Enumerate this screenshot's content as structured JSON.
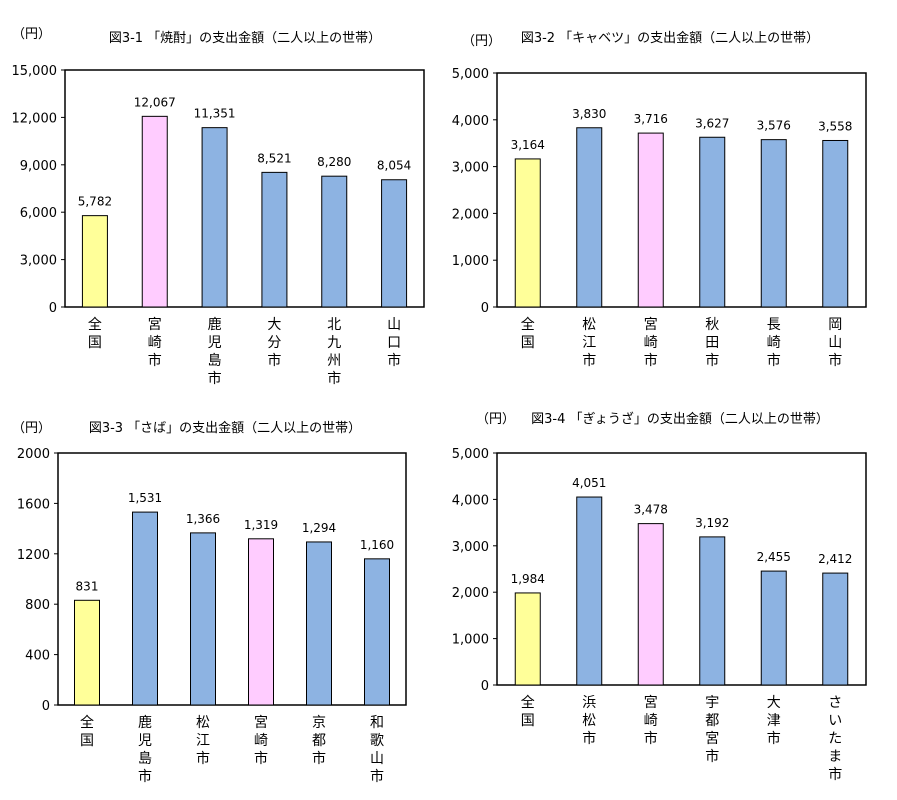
{
  "colors": {
    "national": "#FFFF99",
    "miyazaki": "#FFCCFF",
    "other": "#8DB3E2"
  },
  "chart_data": [
    {
      "type": "bar",
      "title": "図3-1 「焼酎」の支出金額（二人以上の世帯）",
      "ylabel": "（円）",
      "ylim": [
        0,
        15000
      ],
      "yticks": [
        "0",
        "3,000",
        "6,000",
        "9,000",
        "12,000",
        "15,000"
      ],
      "ytick_values": [
        0,
        3000,
        6000,
        9000,
        12000,
        15000
      ],
      "categories": [
        "全国",
        "宮崎市",
        "鹿児島市",
        "大分市",
        "北九州市",
        "山口市"
      ],
      "values": [
        5782,
        12067,
        11351,
        8521,
        8280,
        8054
      ],
      "value_labels": [
        "5,782",
        "12,067",
        "11,351",
        "8,521",
        "8,280",
        "8,054"
      ],
      "bar_colors": [
        "national",
        "miyazaki",
        "other",
        "other",
        "other",
        "other"
      ],
      "grid": false
    },
    {
      "type": "bar",
      "title": "図3-2 「キャベツ」の支出金額（二人以上の世帯）",
      "ylabel": "（円）",
      "ylim": [
        0,
        5000
      ],
      "yticks": [
        "0",
        "1,000",
        "2,000",
        "3,000",
        "4,000",
        "5,000"
      ],
      "ytick_values": [
        0,
        1000,
        2000,
        3000,
        4000,
        5000
      ],
      "categories": [
        "全国",
        "松江市",
        "宮崎市",
        "秋田市",
        "長崎市",
        "岡山市"
      ],
      "values": [
        3164,
        3830,
        3716,
        3627,
        3576,
        3558
      ],
      "value_labels": [
        "3,164",
        "3,830",
        "3,716",
        "3,627",
        "3,576",
        "3,558"
      ],
      "bar_colors": [
        "national",
        "other",
        "miyazaki",
        "other",
        "other",
        "other"
      ],
      "grid": false
    },
    {
      "type": "bar",
      "title": "図3-3 「さば」の支出金額（二人以上の世帯）",
      "ylabel": "（円）",
      "ylim": [
        0,
        2000
      ],
      "yticks": [
        "0",
        "400",
        "800",
        "1200",
        "1600",
        "2000"
      ],
      "ytick_values": [
        0,
        400,
        800,
        1200,
        1600,
        2000
      ],
      "categories": [
        "全国",
        "鹿児島市",
        "松江市",
        "宮崎市",
        "京都市",
        "和歌山市"
      ],
      "values": [
        831,
        1531,
        1366,
        1319,
        1294,
        1160
      ],
      "value_labels": [
        "831",
        "1,531",
        "1,366",
        "1,319",
        "1,294",
        "1,160"
      ],
      "bar_colors": [
        "national",
        "other",
        "other",
        "miyazaki",
        "other",
        "other"
      ],
      "grid": false
    },
    {
      "type": "bar",
      "title": "図3-4 「ぎょうざ」の支出金額（二人以上の世帯）",
      "ylabel": "（円）",
      "ylim": [
        0,
        5000
      ],
      "yticks": [
        "0",
        "1,000",
        "2,000",
        "3,000",
        "4,000",
        "5,000"
      ],
      "ytick_values": [
        0,
        1000,
        2000,
        3000,
        4000,
        5000
      ],
      "categories": [
        "全国",
        "浜松市",
        "宮崎市",
        "宇都宮市",
        "大津市",
        "さいたま市"
      ],
      "values": [
        1984,
        4051,
        3478,
        3192,
        2455,
        2412
      ],
      "value_labels": [
        "1,984",
        "4,051",
        "3,478",
        "3,192",
        "2,455",
        "2,412"
      ],
      "bar_colors": [
        "national",
        "other",
        "miyazaki",
        "other",
        "other",
        "other"
      ],
      "grid": false
    }
  ]
}
